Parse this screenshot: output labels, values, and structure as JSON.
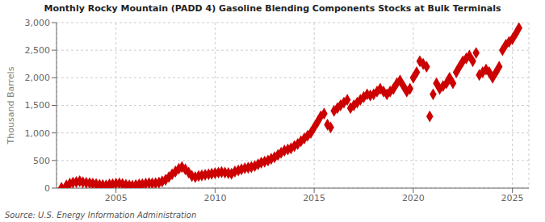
{
  "chart_data": {
    "type": "scatter",
    "title": "Monthly Rocky Mountain (PADD 4) Gasoline Blending Components Stocks at Bulk Terminals",
    "ylabel": "Thousand Barrels",
    "annotations": [
      "Source: U.S. Energy Information Administration"
    ],
    "color": "#cc0000",
    "marker": "diamond",
    "grid": true,
    "xlim": [
      2002.0,
      2025.83
    ],
    "xticks": [
      2005,
      2010,
      2015,
      2020,
      2025
    ],
    "ylim": [
      0,
      3000
    ],
    "yticks": [
      0,
      500,
      {
        "value": 1000,
        "label": "1,000"
      },
      {
        "value": 1500,
        "label": "1,500"
      },
      {
        "value": 2000,
        "label": "2,000"
      },
      {
        "value": 2500,
        "label": "2,500"
      },
      {
        "value": 3000,
        "label": "3,000"
      }
    ],
    "x": [
      2002.25,
      2002.5,
      2002.67,
      2002.83,
      2003.0,
      2003.17,
      2003.33,
      2003.5,
      2003.67,
      2003.83,
      2004.0,
      2004.17,
      2004.33,
      2004.5,
      2004.67,
      2004.83,
      2005.0,
      2005.17,
      2005.33,
      2005.5,
      2005.67,
      2005.83,
      2006.0,
      2006.17,
      2006.33,
      2006.5,
      2006.67,
      2006.83,
      2007.0,
      2007.17,
      2007.33,
      2007.5,
      2007.67,
      2007.83,
      2008.0,
      2008.17,
      2008.33,
      2008.5,
      2008.67,
      2008.83,
      2009.0,
      2009.17,
      2009.33,
      2009.5,
      2009.67,
      2009.83,
      2010.0,
      2010.17,
      2010.33,
      2010.5,
      2010.67,
      2010.83,
      2011.0,
      2011.17,
      2011.33,
      2011.5,
      2011.67,
      2011.83,
      2012.0,
      2012.17,
      2012.33,
      2012.5,
      2012.67,
      2012.83,
      2013.0,
      2013.17,
      2013.33,
      2013.5,
      2013.67,
      2013.83,
      2014.0,
      2014.17,
      2014.33,
      2014.5,
      2014.67,
      2014.83,
      2015.0,
      2015.17,
      2015.33,
      2015.5,
      2015.67,
      2015.83,
      2016.0,
      2016.17,
      2016.33,
      2016.5,
      2016.67,
      2016.83,
      2017.0,
      2017.17,
      2017.33,
      2017.5,
      2017.67,
      2017.83,
      2018.0,
      2018.17,
      2018.33,
      2018.5,
      2018.67,
      2018.83,
      2019.0,
      2019.17,
      2019.33,
      2019.5,
      2019.67,
      2019.83,
      2020.0,
      2020.17,
      2020.33,
      2020.5,
      2020.67,
      2020.83,
      2021.0,
      2021.17,
      2021.33,
      2021.5,
      2021.67,
      2021.83,
      2022.0,
      2022.17,
      2022.33,
      2022.5,
      2022.67,
      2022.83,
      2023.0,
      2023.17,
      2023.33,
      2023.5,
      2023.67,
      2023.83,
      2024.0,
      2024.17,
      2024.33,
      2024.5,
      2024.67,
      2024.83,
      2025.0,
      2025.17,
      2025.33
    ],
    "values": [
      5,
      50,
      80,
      100,
      110,
      125,
      105,
      95,
      90,
      80,
      75,
      60,
      55,
      50,
      65,
      70,
      80,
      85,
      75,
      60,
      50,
      45,
      55,
      65,
      70,
      80,
      90,
      85,
      90,
      100,
      120,
      150,
      200,
      250,
      300,
      350,
      380,
      340,
      280,
      220,
      200,
      220,
      230,
      240,
      250,
      260,
      270,
      280,
      290,
      280,
      270,
      260,
      300,
      320,
      340,
      360,
      370,
      380,
      400,
      430,
      460,
      480,
      500,
      530,
      560,
      600,
      640,
      680,
      700,
      720,
      760,
      800,
      850,
      900,
      950,
      1000,
      1100,
      1200,
      1300,
      1350,
      1150,
      1100,
      1400,
      1450,
      1500,
      1550,
      1600,
      1450,
      1500,
      1550,
      1600,
      1650,
      1700,
      1680,
      1700,
      1750,
      1800,
      1750,
      1700,
      1750,
      1800,
      1900,
      1950,
      1850,
      1750,
      1800,
      2000,
      2100,
      2300,
      2250,
      2200,
      1300,
      1700,
      1900,
      1800,
      1850,
      1900,
      2000,
      1900,
      2100,
      2200,
      2300,
      2350,
      2400,
      2300,
      2450,
      2050,
      2100,
      2150,
      2100,
      2000,
      2100,
      2200,
      2500,
      2600,
      2650,
      2700,
      2800,
      2900
    ]
  }
}
